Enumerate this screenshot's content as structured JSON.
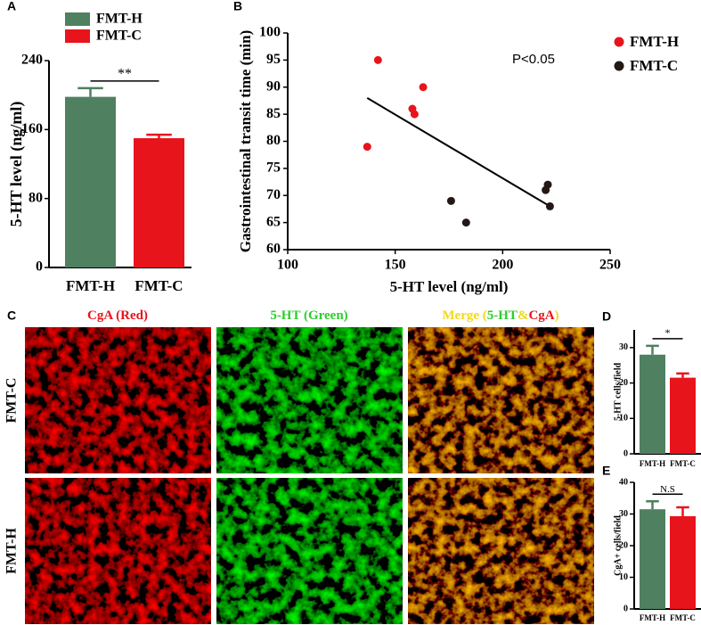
{
  "chart_data": [
    {
      "type": "bar",
      "panel": "A",
      "ylabel": "5-HT level (ng/ml)",
      "categories": [
        "FMT-H",
        "FMT-C"
      ],
      "values": [
        198,
        150
      ],
      "errors": [
        10,
        4
      ],
      "colors": [
        "#4f8060",
        "#e8141c"
      ],
      "ylim": [
        0,
        240
      ],
      "yticks": [
        0,
        80,
        160,
        240
      ],
      "annotation": "**",
      "legend": true
    },
    {
      "type": "scatter",
      "panel": "B",
      "xlabel": "5-HT level (ng/ml)",
      "ylabel": "Gastrointestinal transit time (min)",
      "xlim": [
        100,
        250
      ],
      "xticks": [
        100,
        150,
        200,
        250
      ],
      "ylim": [
        60,
        100
      ],
      "yticks": [
        60,
        65,
        70,
        75,
        80,
        85,
        90,
        95,
        100
      ],
      "annotation": "P<0.05",
      "series": [
        {
          "name": "FMT-H",
          "color": "#e8141c",
          "x": [
            142,
            137,
            158,
            159,
            163
          ],
          "values": [
            95,
            79,
            86,
            85,
            90
          ]
        },
        {
          "name": "FMT-C",
          "color": "#231815",
          "x": [
            176,
            183,
            220,
            221,
            222
          ],
          "values": [
            69,
            65,
            71,
            72,
            68
          ]
        }
      ],
      "trendline": {
        "x": [
          137,
          222
        ],
        "values": [
          88,
          68
        ]
      }
    },
    {
      "type": "bar",
      "panel": "D",
      "ylabel": "5-HT cells/field",
      "categories": [
        "FMT-H",
        "FMT-C"
      ],
      "values": [
        28,
        21.5
      ],
      "errors": [
        2.5,
        1.2
      ],
      "colors": [
        "#4f8060",
        "#e8141c"
      ],
      "ylim": [
        0,
        35
      ],
      "yticks": [
        0,
        10,
        20,
        30
      ],
      "annotation": "*"
    },
    {
      "type": "bar",
      "panel": "E",
      "ylabel": "CgA+ cells/field",
      "categories": [
        "FMT-H",
        "FMT-C"
      ],
      "values": [
        31.5,
        29.3
      ],
      "errors": [
        2.5,
        2.8
      ],
      "colors": [
        "#4f8060",
        "#e8141c"
      ],
      "ylim": [
        0,
        40
      ],
      "yticks": [
        0,
        10,
        20,
        30,
        40
      ],
      "annotation": "N.S"
    }
  ],
  "image_panel": {
    "panel": "C",
    "columns": [
      [
        {
          "text": "CgA (Red)",
          "color": "#e8141c"
        }
      ],
      [
        {
          "text": "5-HT (Green)",
          "color": "#2ecc2e"
        }
      ],
      [
        {
          "text": "Merge (",
          "color": "#f2d81a"
        },
        {
          "text": "5-HT",
          "color": "#2ecc2e"
        },
        {
          "text": "&",
          "color": "#f2d81a"
        },
        {
          "text": "CgA",
          "color": "#e8141c"
        },
        {
          "text": ")",
          "color": "#f2d81a"
        }
      ]
    ],
    "rows": [
      "FMT-C",
      "FMT-H"
    ]
  }
}
